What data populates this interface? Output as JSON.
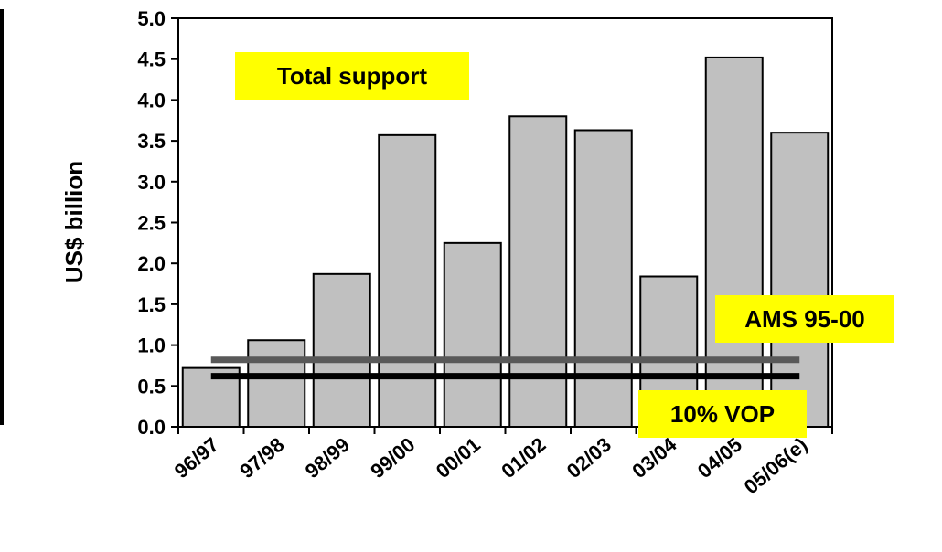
{
  "chart_data": {
    "type": "bar",
    "ylabel": "US$ billion",
    "ylim": [
      0,
      5
    ],
    "yticks": [
      "0.0",
      "0.5",
      "1.0",
      "1.5",
      "2.0",
      "2.5",
      "3.0",
      "3.5",
      "4.0",
      "4.5",
      "5.0"
    ],
    "categories": [
      "96/97",
      "97/98",
      "98/99",
      "99/00",
      "00/01",
      "01/02",
      "02/03",
      "03/04",
      "04/05",
      "05/06(e)"
    ],
    "series": [
      {
        "name": "Total support",
        "values": [
          0.72,
          1.06,
          1.87,
          3.57,
          2.25,
          3.8,
          3.63,
          1.84,
          4.52,
          3.6
        ]
      }
    ],
    "reference_lines": [
      {
        "name": "AMS 95-00",
        "value": 0.82,
        "color": "#595959"
      },
      {
        "name": "10% VOP",
        "value": 0.62,
        "color": "#000000"
      }
    ],
    "annotations": [
      "Total support",
      "AMS 95-00",
      "10% VOP"
    ],
    "bar_color": "#c0c0c0",
    "label_bg": "#ffff00",
    "grid": false
  }
}
